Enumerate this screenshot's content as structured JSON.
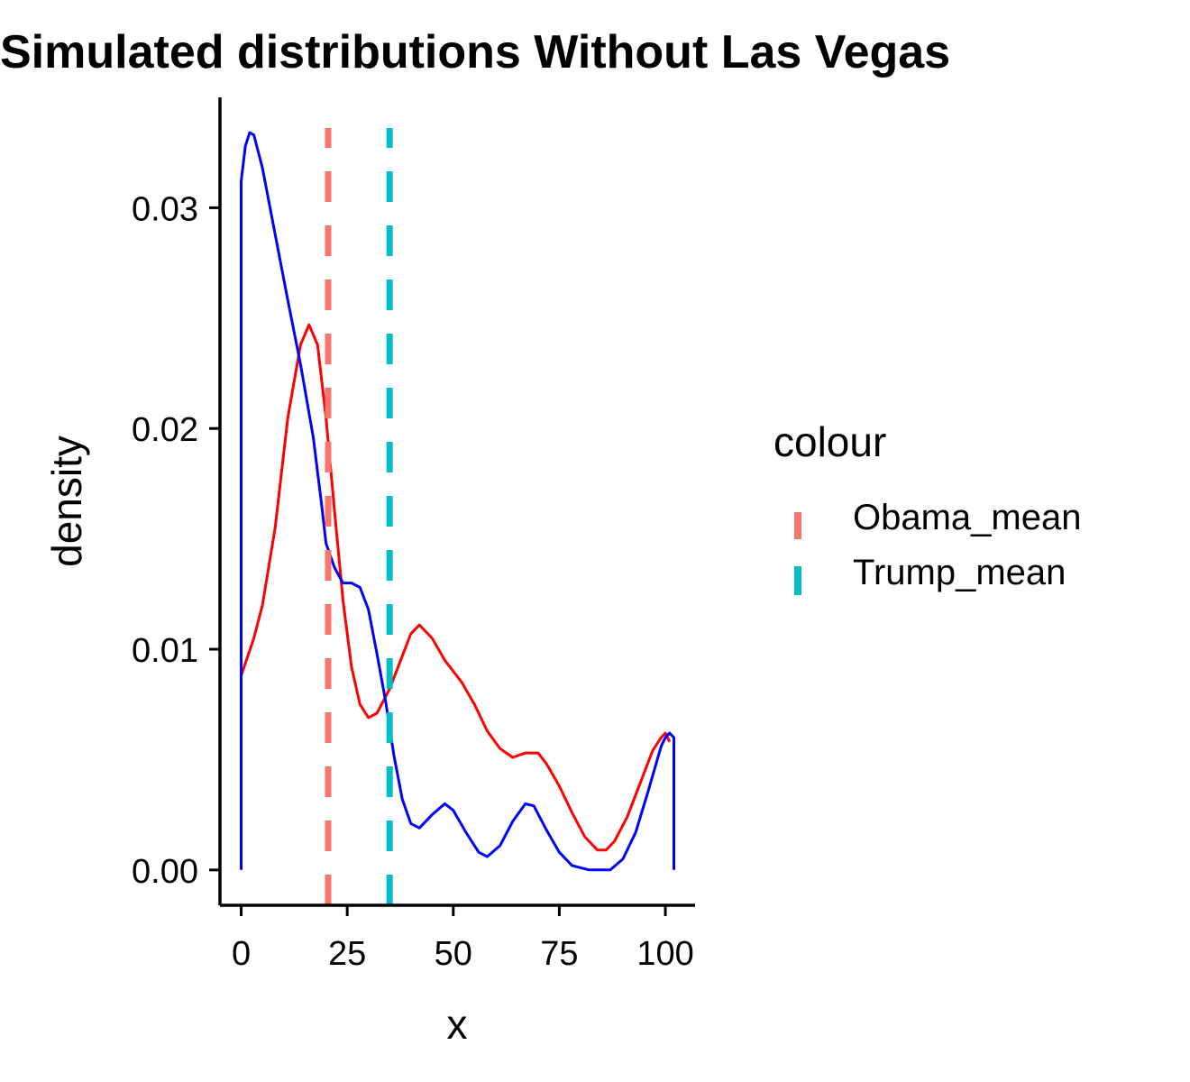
{
  "chart_data": {
    "type": "line",
    "title": "Simulated distributions Without Las Vegas",
    "xlabel": "x",
    "ylabel": "density",
    "xlim": [
      -5,
      107
    ],
    "ylim": [
      -0.0016,
      0.035
    ],
    "x_ticks": [
      0,
      25,
      50,
      75,
      100
    ],
    "x_tick_labels": [
      "0",
      "25",
      "50",
      "75",
      "100"
    ],
    "y_ticks": [
      0.0,
      0.01,
      0.02,
      0.03
    ],
    "y_tick_labels": [
      "0.00",
      "0.01",
      "0.02",
      "0.03"
    ],
    "grid": false,
    "series": [
      {
        "color": "#ff0000",
        "points": [
          [
            0,
            0.0088
          ],
          [
            3,
            0.0105
          ],
          [
            5,
            0.012
          ],
          [
            8,
            0.0155
          ],
          [
            11,
            0.0205
          ],
          [
            14,
            0.0238
          ],
          [
            16,
            0.0247
          ],
          [
            18,
            0.0238
          ],
          [
            20,
            0.0205
          ],
          [
            22,
            0.0163
          ],
          [
            24,
            0.0122
          ],
          [
            26,
            0.0092
          ],
          [
            28,
            0.0075
          ],
          [
            30,
            0.0069
          ],
          [
            32,
            0.0071
          ],
          [
            35,
            0.0082
          ],
          [
            38,
            0.0097
          ],
          [
            40,
            0.0107
          ],
          [
            42,
            0.0111
          ],
          [
            45,
            0.0105
          ],
          [
            48,
            0.0095
          ],
          [
            52,
            0.0085
          ],
          [
            55,
            0.0075
          ],
          [
            58,
            0.0063
          ],
          [
            61,
            0.0055
          ],
          [
            64,
            0.0051
          ],
          [
            67,
            0.0053
          ],
          [
            70,
            0.0053
          ],
          [
            72,
            0.0048
          ],
          [
            75,
            0.0038
          ],
          [
            78,
            0.0026
          ],
          [
            81,
            0.0015
          ],
          [
            84,
            0.0009
          ],
          [
            86,
            0.0009
          ],
          [
            88,
            0.0013
          ],
          [
            91,
            0.0024
          ],
          [
            94,
            0.0039
          ],
          [
            97,
            0.0054
          ],
          [
            99,
            0.006
          ],
          [
            100,
            0.0062
          ],
          [
            101,
            0.0058
          ]
        ]
      },
      {
        "color": "#0000ff",
        "points": [
          [
            0,
            0.0
          ],
          [
            0,
            0.0312
          ],
          [
            1,
            0.0328
          ],
          [
            2,
            0.0334
          ],
          [
            3,
            0.0333
          ],
          [
            5,
            0.0318
          ],
          [
            8,
            0.0288
          ],
          [
            11,
            0.0258
          ],
          [
            14,
            0.0229
          ],
          [
            17,
            0.0196
          ],
          [
            19,
            0.0165
          ],
          [
            20,
            0.0148
          ],
          [
            22,
            0.0137
          ],
          [
            24,
            0.013
          ],
          [
            26,
            0.013
          ],
          [
            28,
            0.0128
          ],
          [
            30,
            0.0118
          ],
          [
            32,
            0.0098
          ],
          [
            34,
            0.0077
          ],
          [
            36,
            0.0052
          ],
          [
            38,
            0.0032
          ],
          [
            40,
            0.0021
          ],
          [
            42,
            0.0019
          ],
          [
            45,
            0.0025
          ],
          [
            48,
            0.003
          ],
          [
            50,
            0.0027
          ],
          [
            53,
            0.0017
          ],
          [
            56,
            0.0008
          ],
          [
            58,
            0.0006
          ],
          [
            61,
            0.0011
          ],
          [
            64,
            0.0022
          ],
          [
            67,
            0.003
          ],
          [
            69,
            0.0029
          ],
          [
            72,
            0.0018
          ],
          [
            75,
            0.0008
          ],
          [
            78,
            0.0002
          ],
          [
            82,
            0.0
          ],
          [
            87,
            0.0
          ],
          [
            90,
            0.0005
          ],
          [
            93,
            0.0017
          ],
          [
            96,
            0.0036
          ],
          [
            99,
            0.0056
          ],
          [
            100,
            0.006
          ],
          [
            101,
            0.0062
          ],
          [
            102,
            0.006
          ],
          [
            102,
            0.0
          ]
        ]
      }
    ],
    "vlines": [
      {
        "name": "Obama_mean",
        "x": 20.5,
        "color": "#f8766d",
        "style": "dashed"
      },
      {
        "name": "Trump_mean",
        "x": 35,
        "color": "#00bfc4",
        "style": "dashed"
      }
    ],
    "legend": {
      "title": "colour",
      "position": "right",
      "entries": [
        {
          "label": "Obama_mean",
          "color": "#f8766d"
        },
        {
          "label": "Trump_mean",
          "color": "#00bfc4"
        }
      ]
    }
  }
}
